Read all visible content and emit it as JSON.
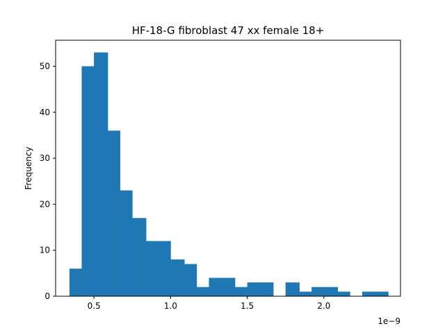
{
  "chart_data": {
    "type": "bar",
    "title": "HF-18-G fibroblast 47 xx female 18+",
    "xlabel": "",
    "ylabel": "Frequency",
    "x_offset_label": "1e−9",
    "x_scale_exponent": -9,
    "bar_color": "#1f77b4",
    "xlim": [
      0.25,
      2.5
    ],
    "ylim": [
      0,
      55.65
    ],
    "xticks": [
      0.5,
      1.0,
      1.5,
      2.0
    ],
    "xtick_labels": [
      "0.5",
      "1.0",
      "1.5",
      "2.0"
    ],
    "yticks": [
      0,
      10,
      20,
      30,
      40,
      50
    ],
    "ytick_labels": [
      "0",
      "10",
      "20",
      "30",
      "40",
      "50"
    ],
    "grid": false,
    "bins": [
      {
        "x0": 0.34,
        "x1": 0.42,
        "count": 6
      },
      {
        "x0": 0.42,
        "x1": 0.5,
        "count": 50
      },
      {
        "x0": 0.5,
        "x1": 0.59,
        "count": 53
      },
      {
        "x0": 0.59,
        "x1": 0.67,
        "count": 36
      },
      {
        "x0": 0.67,
        "x1": 0.75,
        "count": 23
      },
      {
        "x0": 0.75,
        "x1": 0.84,
        "count": 17
      },
      {
        "x0": 0.84,
        "x1": 1.0,
        "count": 12
      },
      {
        "x0": 1.0,
        "x1": 1.09,
        "count": 8
      },
      {
        "x0": 1.09,
        "x1": 1.17,
        "count": 7
      },
      {
        "x0": 1.17,
        "x1": 1.25,
        "count": 2
      },
      {
        "x0": 1.25,
        "x1": 1.42,
        "count": 4
      },
      {
        "x0": 1.42,
        "x1": 1.5,
        "count": 2
      },
      {
        "x0": 1.5,
        "x1": 1.67,
        "count": 3
      },
      {
        "x0": 1.67,
        "x1": 1.75,
        "count": 0
      },
      {
        "x0": 1.75,
        "x1": 1.84,
        "count": 3
      },
      {
        "x0": 1.84,
        "x1": 1.92,
        "count": 1
      },
      {
        "x0": 1.92,
        "x1": 2.09,
        "count": 2
      },
      {
        "x0": 2.09,
        "x1": 2.17,
        "count": 1
      },
      {
        "x0": 2.17,
        "x1": 2.25,
        "count": 0
      },
      {
        "x0": 2.25,
        "x1": 2.42,
        "count": 1
      }
    ]
  }
}
